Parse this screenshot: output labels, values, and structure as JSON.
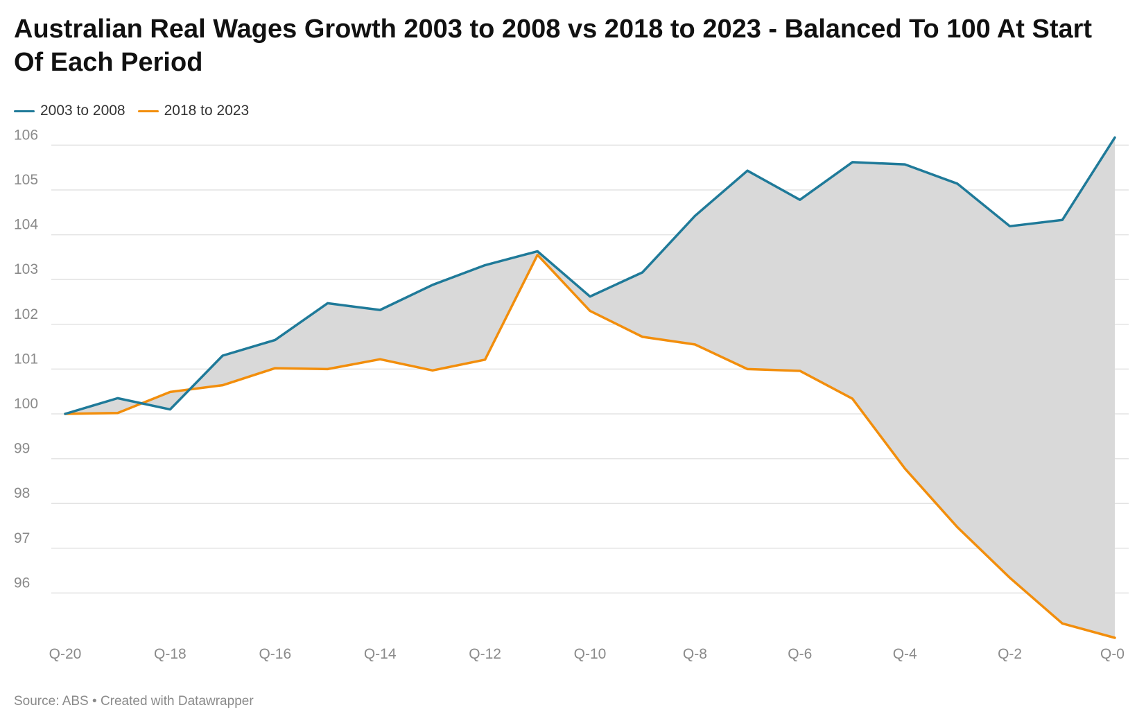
{
  "title": "Australian Real Wages Growth 2003 to 2008 vs 2018 to 2023 - Balanced To 100 At Start Of Each Period",
  "source": "Source: ABS • Created with Datawrapper",
  "colors": {
    "series_1": "#1f7a99",
    "series_2": "#f28e0c",
    "fill": "#d9d9d9",
    "grid": "#e3e3e3"
  },
  "chart_data": {
    "type": "line",
    "title": "Australian Real Wages Growth 2003 to 2008 vs 2018 to 2023 - Balanced To 100 At Start Of Each Period",
    "x": [
      "Q-20",
      "Q-19",
      "Q-18",
      "Q-17",
      "Q-16",
      "Q-15",
      "Q-14",
      "Q-13",
      "Q-12",
      "Q-11",
      "Q-10",
      "Q-9",
      "Q-8",
      "Q-7",
      "Q-6",
      "Q-5",
      "Q-4",
      "Q-3",
      "Q-2",
      "Q-1",
      "Q-0"
    ],
    "x_tick_labels": [
      "Q-20",
      "Q-18",
      "Q-16",
      "Q-14",
      "Q-12",
      "Q-10",
      "Q-8",
      "Q-6",
      "Q-4",
      "Q-2",
      "Q-0"
    ],
    "y_ticks": [
      96,
      97,
      98,
      99,
      100,
      101,
      102,
      103,
      104,
      105,
      106
    ],
    "ylim": [
      95,
      106.3
    ],
    "grid": true,
    "legend_position": "top-left",
    "fill_between_series": true,
    "series": [
      {
        "name": "2003 to 2008",
        "values": [
          100.0,
          100.35,
          100.1,
          101.3,
          101.65,
          102.47,
          102.32,
          102.88,
          103.32,
          103.63,
          102.62,
          103.16,
          104.42,
          105.43,
          104.78,
          105.62,
          105.57,
          105.14,
          104.19,
          104.33,
          106.17
        ]
      },
      {
        "name": "2018 to 2023",
        "values": [
          100.0,
          100.02,
          100.49,
          100.64,
          101.02,
          101.0,
          101.22,
          100.97,
          101.21,
          103.55,
          102.3,
          101.72,
          101.55,
          101.0,
          100.96,
          100.34,
          98.78,
          97.47,
          96.34,
          95.32,
          95.0
        ]
      }
    ]
  }
}
